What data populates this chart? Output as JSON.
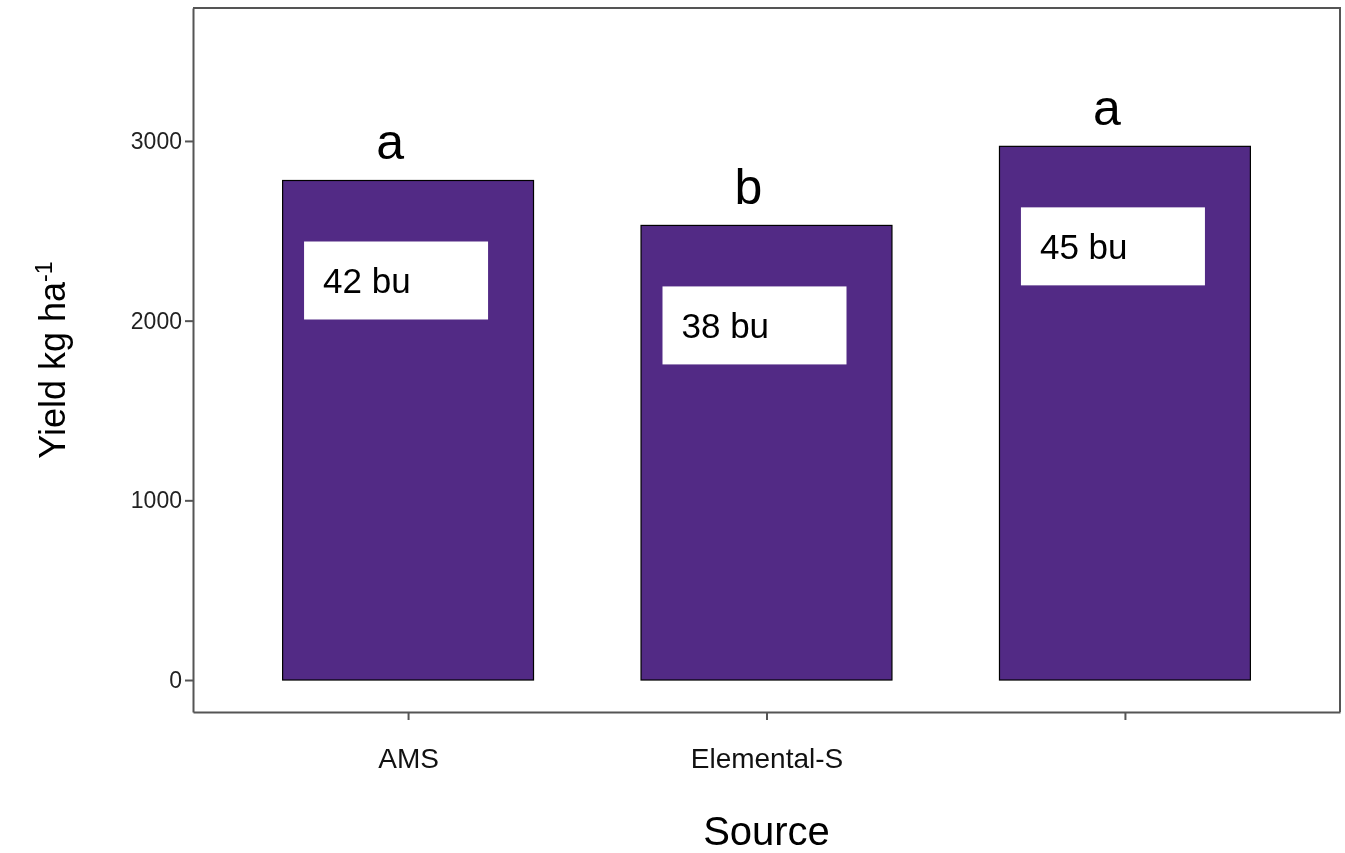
{
  "chart_data": {
    "type": "bar",
    "xlabel": "Source",
    "ylabel": "Yield kg ha$^{-1}$",
    "categories": [
      "AMS",
      "Elemental-S",
      null
    ],
    "values": [
      2780,
      2530,
      2970
    ],
    "color": "#522a85",
    "ylim": [
      -178,
      3740
    ],
    "yticks": [
      0,
      1000,
      2000,
      3000
    ],
    "grid": false,
    "annotations": [
      "a",
      "b",
      "a",
      "42 bu",
      "38 bu",
      "45 bu"
    ]
  }
}
